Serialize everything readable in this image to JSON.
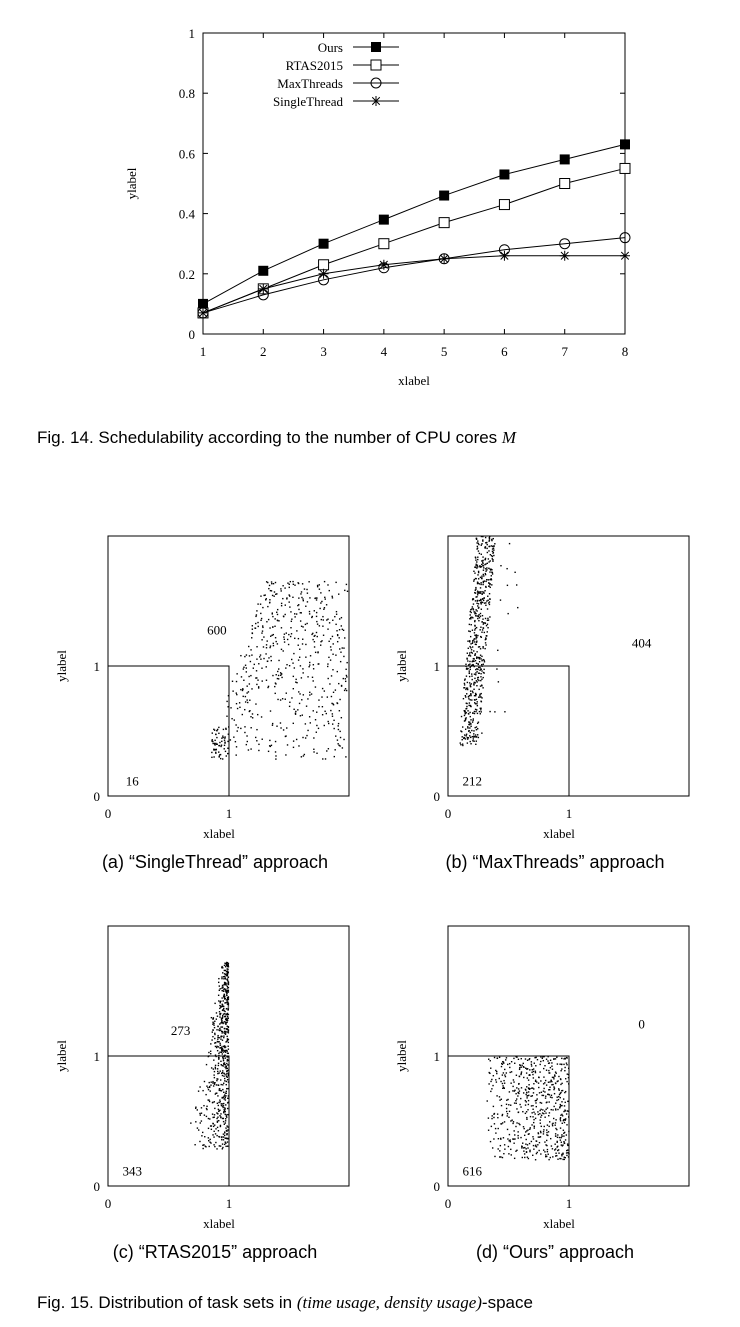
{
  "fig14": {
    "caption_prefix": "Fig. 14. Schedulability according to the number of CPU cores ",
    "caption_var": "M",
    "chart_data": {
      "type": "line",
      "xlabel": "xlabel",
      "ylabel": "ylabel",
      "xlim": [
        1,
        8
      ],
      "ylim": [
        0,
        1
      ],
      "x_ticks": [
        1,
        2,
        3,
        4,
        5,
        6,
        7,
        8
      ],
      "y_ticks": [
        0,
        0.2,
        0.4,
        0.6,
        0.8,
        1
      ],
      "legend_position": "top-left",
      "x": [
        1,
        2,
        3,
        4,
        5,
        6,
        7,
        8
      ],
      "series": [
        {
          "name": "Ours",
          "marker": "filled-square",
          "values": [
            0.1,
            0.21,
            0.3,
            0.38,
            0.46,
            0.53,
            0.58,
            0.63
          ]
        },
        {
          "name": "RTAS2015",
          "marker": "open-square",
          "values": [
            0.07,
            0.15,
            0.23,
            0.3,
            0.37,
            0.43,
            0.5,
            0.55
          ]
        },
        {
          "name": "MaxThreads",
          "marker": "open-circle",
          "values": [
            0.07,
            0.13,
            0.18,
            0.22,
            0.25,
            0.28,
            0.3,
            0.32
          ]
        },
        {
          "name": "SingleThread",
          "marker": "asterisk",
          "values": [
            0.07,
            0.15,
            0.2,
            0.23,
            0.25,
            0.26,
            0.26,
            0.26
          ]
        }
      ]
    }
  },
  "fig15": {
    "caption_prefix": "Fig. 15. Distribution of task sets in ",
    "caption_math": "(time usage, density usage)",
    "caption_suffix": "-space",
    "panels": [
      {
        "id": "a",
        "caption": "(a) “SingleThread” approach",
        "chart_data": {
          "type": "scatter",
          "xlabel": "xlabel",
          "ylabel": "ylabel",
          "xlim": [
            0,
            2
          ],
          "ylim": [
            0,
            2
          ],
          "x_ticks": [
            "0",
            "1"
          ],
          "y_ticks": [
            "0",
            "1"
          ],
          "count_inside": "16",
          "count_outside": "600",
          "cloud": {
            "x_range": [
              0.9,
              2.0
            ],
            "y_range": [
              0.28,
              1.65
            ],
            "n_points": 616,
            "shape": "right-block"
          }
        }
      },
      {
        "id": "b",
        "caption": "(b) “MaxThreads” approach",
        "chart_data": {
          "type": "scatter",
          "xlabel": "xlabel",
          "ylabel": "ylabel",
          "xlim": [
            0,
            2
          ],
          "ylim": [
            0,
            2
          ],
          "x_ticks": [
            "0",
            "1"
          ],
          "y_ticks": [
            "0",
            "1"
          ],
          "count_inside": "212",
          "count_outside": "404",
          "cloud": {
            "x_range": [
              0.12,
              0.6
            ],
            "y_range": [
              0.38,
              2.0
            ],
            "n_points": 616,
            "shape": "thin-rising-band"
          }
        }
      },
      {
        "id": "c",
        "caption": "(c) “RTAS2015” approach",
        "chart_data": {
          "type": "scatter",
          "xlabel": "xlabel",
          "ylabel": "ylabel",
          "xlim": [
            0,
            2
          ],
          "ylim": [
            0,
            2
          ],
          "x_ticks": [
            "0",
            "1"
          ],
          "y_ticks": [
            "0",
            "1"
          ],
          "count_inside": "343",
          "count_outside": "273",
          "cloud": {
            "x_range": [
              0.55,
              1.0
            ],
            "y_range": [
              0.28,
              1.72
            ],
            "n_points": 616,
            "shape": "left-of-boundary"
          }
        }
      },
      {
        "id": "d",
        "caption": "(d) “Ours” approach",
        "chart_data": {
          "type": "scatter",
          "xlabel": "xlabel",
          "ylabel": "ylabel",
          "xlim": [
            0,
            2
          ],
          "ylim": [
            0,
            2
          ],
          "x_ticks": [
            "0",
            "1"
          ],
          "y_ticks": [
            "0",
            "1"
          ],
          "count_inside": "616",
          "count_outside": "0",
          "cloud": {
            "x_range": [
              0.28,
              1.0
            ],
            "y_range": [
              0.2,
              1.0
            ],
            "n_points": 616,
            "shape": "inside-box"
          }
        }
      }
    ]
  }
}
